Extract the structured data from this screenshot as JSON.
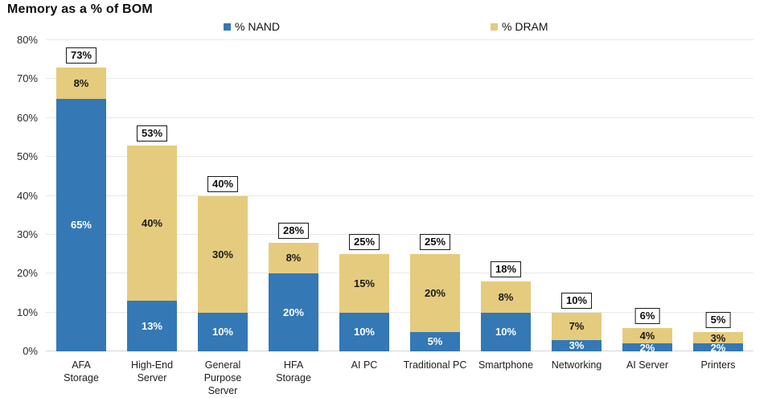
{
  "title": "Memory as a % of BOM",
  "legend": {
    "items": [
      {
        "label": "% NAND",
        "color": "#3478B5"
      },
      {
        "label": "% DRAM",
        "color": "#E5CB7E"
      }
    ]
  },
  "y_axis": {
    "min": 0,
    "max": 80,
    "step": 10,
    "tick_labels": [
      "0%",
      "10%",
      "20%",
      "30%",
      "40%",
      "50%",
      "60%",
      "70%",
      "80%"
    ]
  },
  "chart_data": {
    "type": "bar",
    "stacked": true,
    "title": "Memory as a % of BOM",
    "categories": [
      "AFA Storage",
      "High-End Server",
      "General Purpose Server",
      "HFA Storage",
      "AI PC",
      "Traditional PC",
      "Smartphone",
      "Networking",
      "AI Server",
      "Printers"
    ],
    "category_display": [
      "AFA\nStorage",
      "High-End\nServer",
      "General\nPurpose\nServer",
      "HFA\nStorage",
      "AI PC",
      "Traditional PC",
      "Smartphone",
      "Networking",
      "AI Server",
      "Printers"
    ],
    "series": [
      {
        "name": "% NAND",
        "color": "#3478B5",
        "label_color": "#ffffff",
        "values": [
          65,
          13,
          10,
          20,
          10,
          5,
          10,
          3,
          2,
          2
        ]
      },
      {
        "name": "% DRAM",
        "color": "#E5CB7E",
        "label_color": "#1a1a1a",
        "values": [
          8,
          40,
          30,
          8,
          15,
          20,
          8,
          7,
          4,
          3
        ]
      }
    ],
    "totals": [
      73,
      53,
      40,
      28,
      25,
      25,
      18,
      10,
      6,
      5
    ],
    "ylim": [
      0,
      80
    ],
    "grid": true,
    "legend_position": "top",
    "xlabel": "",
    "ylabel": ""
  }
}
